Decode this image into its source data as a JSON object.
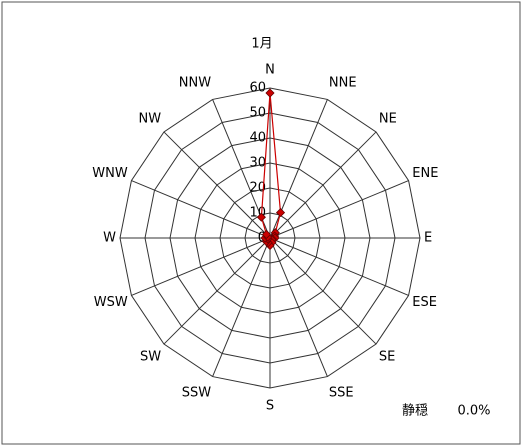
{
  "chart_data": {
    "type": "radar",
    "title": "1月",
    "categories": [
      "N",
      "NNE",
      "NE",
      "ENE",
      "E",
      "ESE",
      "SE",
      "SSE",
      "S",
      "SSW",
      "SW",
      "WSW",
      "W",
      "WNW",
      "NW",
      "NNW"
    ],
    "series": [
      {
        "color": "#cc0000",
        "values": [
          58,
          11,
          3,
          2,
          2,
          1,
          1,
          2,
          3,
          2,
          2,
          1,
          2,
          1,
          2,
          9
        ]
      }
    ],
    "rlim": [
      0,
      60
    ],
    "rticks": [
      0,
      10,
      20,
      30,
      40,
      50,
      60
    ],
    "grid": true,
    "calm_label": "静穏",
    "calm_value": 0.0,
    "calm_value_label": "0.0%"
  }
}
